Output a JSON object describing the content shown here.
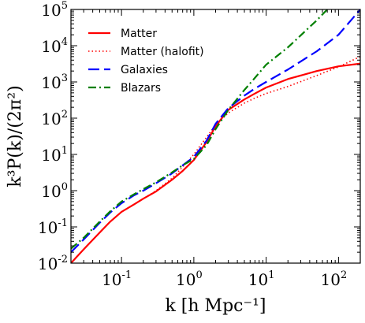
{
  "chart_data": {
    "type": "line",
    "xlabel": "k [h Mpc⁻¹]",
    "ylabel": "k³P(k)/(2π²)",
    "xscale": "log",
    "yscale": "log",
    "xlim": [
      0.02,
      200
    ],
    "ylim": [
      0.01,
      100000
    ],
    "grid": false,
    "legend_position": "top-left",
    "x_ticks": [
      {
        "value": 0.1,
        "base": "10",
        "exp": "-1"
      },
      {
        "value": 1,
        "base": "10",
        "exp": "0"
      },
      {
        "value": 10,
        "base": "10",
        "exp": "1"
      },
      {
        "value": 100,
        "base": "10",
        "exp": "2"
      }
    ],
    "y_ticks": [
      {
        "value": 0.01,
        "base": "10",
        "exp": "-2"
      },
      {
        "value": 0.1,
        "base": "10",
        "exp": "-1"
      },
      {
        "value": 1,
        "base": "10",
        "exp": "0"
      },
      {
        "value": 10,
        "base": "10",
        "exp": "1"
      },
      {
        "value": 100,
        "base": "10",
        "exp": "2"
      },
      {
        "value": 1000,
        "base": "10",
        "exp": "3"
      },
      {
        "value": 10000,
        "base": "10",
        "exp": "4"
      },
      {
        "value": 100000,
        "base": "10",
        "exp": "5"
      }
    ],
    "series": [
      {
        "name": "Matter",
        "color": "#ff0000",
        "style": "solid",
        "x": [
          0.02,
          0.03,
          0.05,
          0.07,
          0.1,
          0.15,
          0.2,
          0.3,
          0.5,
          0.7,
          1.0,
          1.5,
          2.0,
          3.0,
          5.0,
          7.0,
          10,
          20,
          50,
          100,
          200
        ],
        "y": [
          0.01,
          0.024,
          0.07,
          0.14,
          0.26,
          0.42,
          0.6,
          0.95,
          2.0,
          3.5,
          7.0,
          22,
          60,
          170,
          330,
          480,
          700,
          1200,
          2000,
          2700,
          3200
        ]
      },
      {
        "name": "Matter (halofit)",
        "color": "#ff0000",
        "style": "dotted",
        "x": [
          0.02,
          0.03,
          0.05,
          0.07,
          0.1,
          0.15,
          0.2,
          0.3,
          0.5,
          0.7,
          1.0,
          1.5,
          2.0,
          3.0,
          5.0,
          7.0,
          10,
          20,
          50,
          100,
          200
        ],
        "y": [
          0.01,
          0.024,
          0.07,
          0.14,
          0.26,
          0.42,
          0.6,
          1.0,
          2.2,
          4.5,
          10,
          30,
          65,
          140,
          260,
          360,
          480,
          750,
          1500,
          2600,
          5000
        ]
      },
      {
        "name": "Galaxies",
        "color": "#0000ff",
        "style": "dashed",
        "x": [
          0.02,
          0.03,
          0.05,
          0.07,
          0.1,
          0.15,
          0.2,
          0.3,
          0.5,
          0.7,
          1.0,
          1.5,
          2.0,
          3.0,
          5.0,
          7.0,
          10,
          20,
          50,
          100,
          200
        ],
        "y": [
          0.02,
          0.045,
          0.13,
          0.25,
          0.45,
          0.75,
          1.0,
          1.6,
          3.0,
          5.0,
          8.5,
          24,
          70,
          190,
          420,
          660,
          1000,
          2200,
          7000,
          20000,
          100000
        ]
      },
      {
        "name": "Blazars",
        "color": "#008000",
        "style": "dashdot",
        "x": [
          0.02,
          0.03,
          0.05,
          0.07,
          0.1,
          0.15,
          0.2,
          0.3,
          0.5,
          0.7,
          1.0,
          1.5,
          2.0,
          3.0,
          5.0,
          7.0,
          10,
          20,
          50,
          70
        ],
        "y": [
          0.025,
          0.05,
          0.14,
          0.27,
          0.5,
          0.8,
          1.1,
          1.7,
          3.2,
          5.0,
          7.5,
          18,
          50,
          170,
          600,
          1300,
          3000,
          9000,
          50000,
          100000
        ]
      }
    ]
  }
}
